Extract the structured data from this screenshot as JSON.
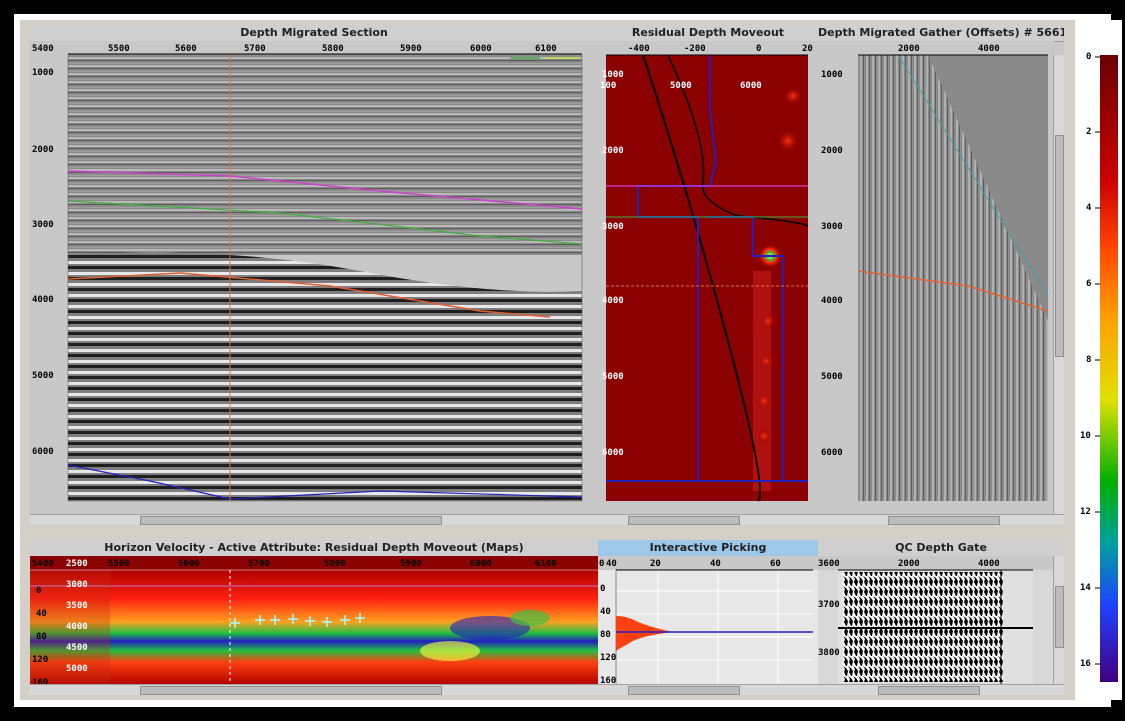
{
  "panels": {
    "section": {
      "title": "Depth Migrated Section",
      "x_ticks": [
        "5400",
        "5500",
        "5600",
        "5700",
        "5800",
        "5900",
        "6000",
        "6100"
      ],
      "y_ticks": [
        "1000",
        "2000",
        "3000",
        "4000",
        "5000",
        "6000"
      ]
    },
    "moveout": {
      "title": "Residual Depth Moveout",
      "top_ticks": [
        "-400",
        "-200",
        "0",
        "20"
      ],
      "mid_ticks": [
        "100",
        "5000",
        "6000"
      ],
      "y_ticks": [
        "1000",
        "2000",
        "3000",
        "4000",
        "5000",
        "6000"
      ]
    },
    "gather": {
      "title": "Depth Migrated Gather (Offsets) # 5661",
      "x_ticks": [
        "2000",
        "4000"
      ],
      "y_ticks": [
        "1000",
        "2000",
        "3000",
        "4000",
        "5000",
        "6000"
      ]
    },
    "horizon": {
      "title": "Horizon Velocity - Active Attribute: Residual Depth Moveout (Maps)",
      "x_ticks": [
        "5400",
        "5500",
        "5600",
        "5700",
        "5800",
        "5900",
        "6000",
        "6100"
      ],
      "y_ticks": [
        "0",
        "40",
        "80",
        "120",
        "160"
      ],
      "vel_ticks": [
        "2500",
        "3000",
        "3500",
        "4000",
        "4500",
        "5000"
      ]
    },
    "picking": {
      "title": "Interactive Picking",
      "x_ticks": [
        "0",
        "40",
        "20",
        "40",
        "60"
      ],
      "y_ticks": [
        "0",
        "40",
        "80",
        "120",
        "160"
      ]
    },
    "qc": {
      "title": "QC Depth Gate",
      "x_ticks": [
        "2000",
        "4000"
      ],
      "y_ticks": [
        "3600",
        "3700",
        "3800"
      ]
    }
  },
  "colorbar": {
    "ticks": [
      "0",
      "2",
      "4",
      "6",
      "8",
      "10",
      "12",
      "14",
      "16"
    ]
  },
  "colors": {
    "horizon_magenta": "#d040d0",
    "horizon_green": "#40b040",
    "horizon_orange": "#e06030",
    "horizon_blue": "#2020c0",
    "cursor_orange": "#e07040",
    "semblance_red": "#8b0000",
    "teal": "#40a0a0"
  }
}
